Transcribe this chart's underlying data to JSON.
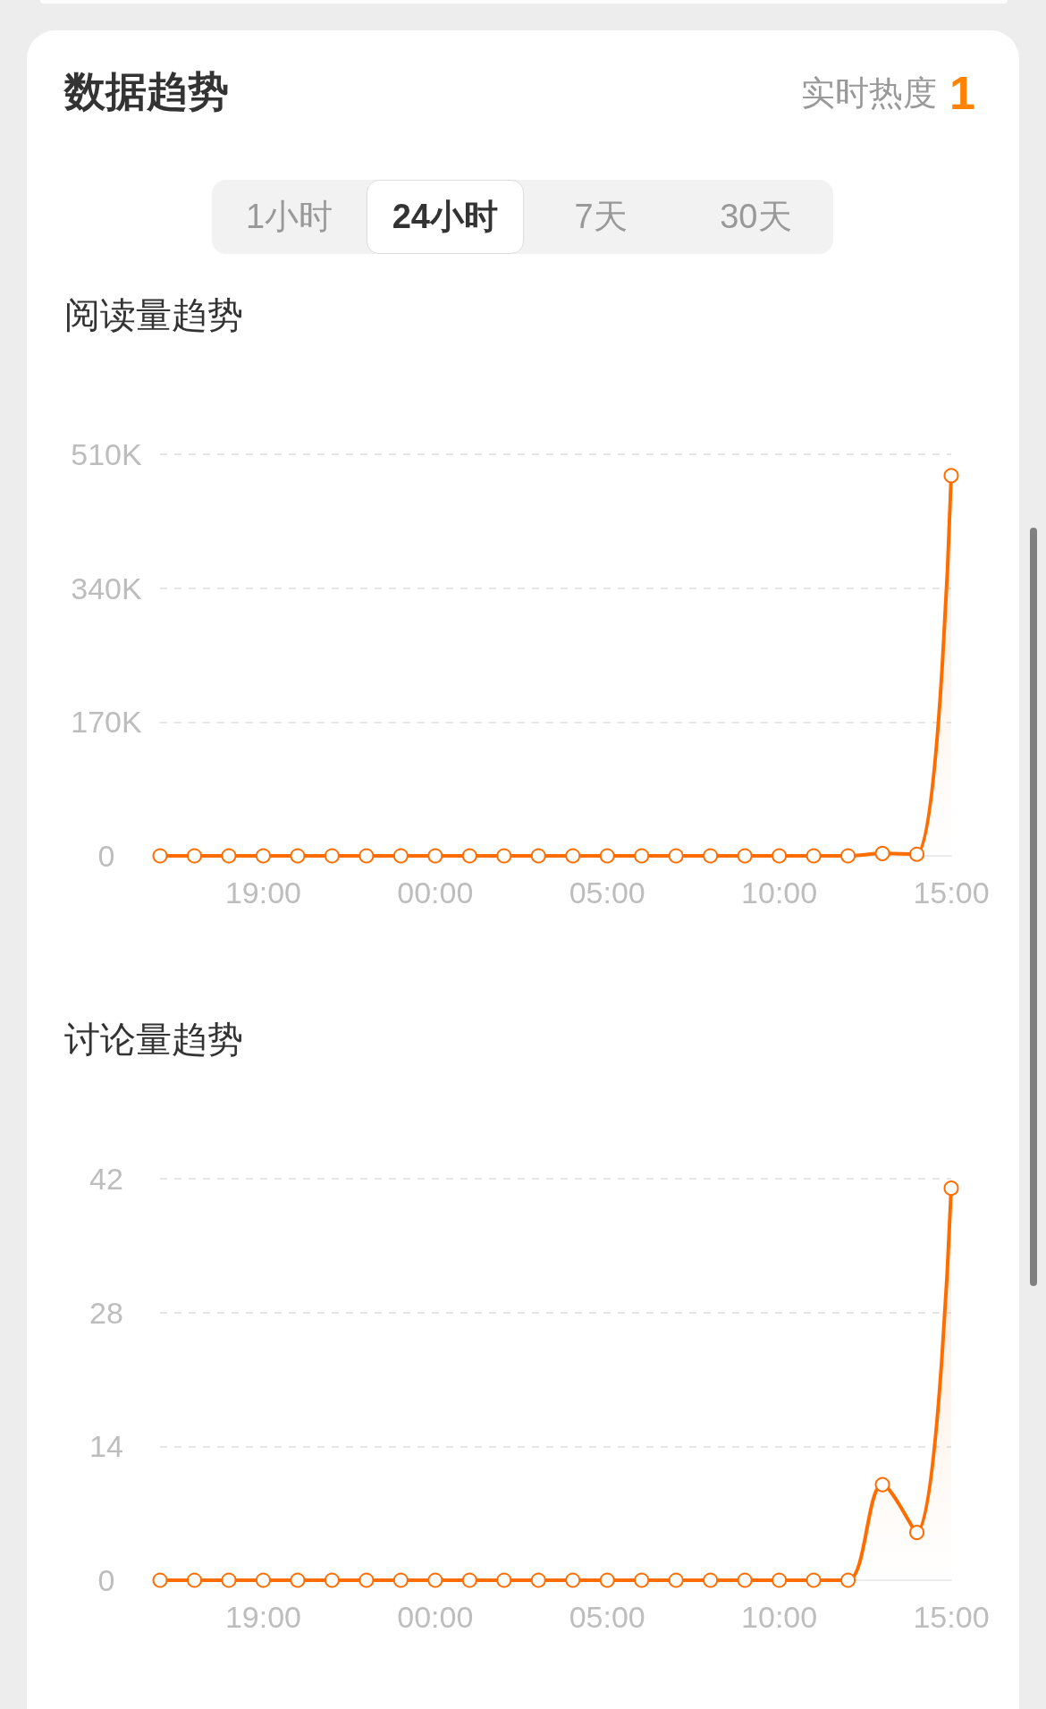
{
  "chart_data": [
    {
      "type": "other",
      "title": "数据趋势",
      "annotations": [
        "实时热度",
        "1",
        "1小时",
        "24小时",
        "7天",
        "30天"
      ]
    },
    {
      "type": "area",
      "title": "阅读量趋势",
      "categories": [
        null,
        null,
        null,
        "19:00",
        null,
        null,
        null,
        null,
        "00:00",
        null,
        null,
        null,
        null,
        "05:00",
        null,
        null,
        null,
        null,
        "10:00",
        null,
        null,
        null,
        null,
        "15:00"
      ],
      "values": [
        0,
        0,
        0,
        0,
        0,
        0,
        0,
        0,
        0,
        0,
        0,
        0,
        0,
        0,
        0,
        0,
        0,
        0,
        0,
        0,
        0,
        3000,
        2000,
        483000
      ],
      "color": "#ff6d00",
      "ylim": [
        0,
        510000
      ],
      "yticks": [
        {
          "value": 0,
          "label": "0"
        },
        {
          "value": 170000,
          "label": "170K"
        },
        {
          "value": 340000,
          "label": "340K"
        },
        {
          "value": 510000,
          "label": "510K"
        }
      ],
      "grid": "y",
      "marker": "circle"
    },
    {
      "type": "area",
      "title": "讨论量趋势",
      "categories": [
        null,
        null,
        null,
        "19:00",
        null,
        null,
        null,
        null,
        "00:00",
        null,
        null,
        null,
        null,
        "05:00",
        null,
        null,
        null,
        null,
        "10:00",
        null,
        null,
        null,
        null,
        "15:00"
      ],
      "values": [
        0,
        0,
        0,
        0,
        0,
        0,
        0,
        0,
        0,
        0,
        0,
        0,
        0,
        0,
        0,
        0,
        0,
        0,
        0,
        0,
        0,
        10,
        5,
        41
      ],
      "color": "#ff6d00",
      "ylim": [
        0,
        42
      ],
      "yticks": [
        0,
        14,
        28,
        42
      ],
      "grid": "y",
      "marker": "circle"
    }
  ]
}
